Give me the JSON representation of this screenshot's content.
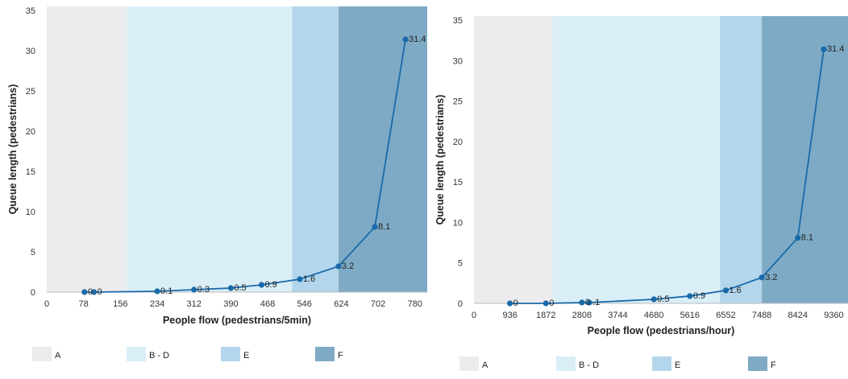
{
  "chart_data": [
    {
      "type": "line",
      "xlabel": "People flow (pedestrians/5min)",
      "ylabel": "Queue length (pedestrians)",
      "xlim": [
        0,
        806
      ],
      "ylim": [
        0,
        35.5
      ],
      "xticks": [
        0,
        78,
        156,
        234,
        312,
        390,
        468,
        546,
        624,
        702,
        780
      ],
      "xtick_labels": [
        "0",
        "78",
        "156",
        "234",
        "312",
        "390",
        "468",
        "546",
        "624",
        "702",
        "780"
      ],
      "yticks": [
        0,
        5,
        10,
        15,
        20,
        25,
        30,
        35
      ],
      "ytick_labels": [
        "0",
        "5",
        "10",
        "15",
        "20",
        "25",
        "30",
        "35"
      ],
      "grid": false,
      "legend_position": "bottom",
      "zones": [
        {
          "name": "A",
          "from": 0,
          "to": 170,
          "color": "#ececee"
        },
        {
          "name": "B - D",
          "from": 170,
          "to": 520,
          "color": "#daeef8"
        },
        {
          "name": "E",
          "from": 520,
          "to": 618,
          "color": "#b3d6ec"
        },
        {
          "name": "F",
          "from": 618,
          "to": 806,
          "color": "#7eaac5"
        }
      ],
      "series": [
        {
          "color": "#1a6aaa",
          "points": [
            {
              "x": 80,
              "y": 0
            },
            {
              "x": 100,
              "y": 0
            },
            {
              "x": 234,
              "y": 0.1
            },
            {
              "x": 312,
              "y": 0.3
            },
            {
              "x": 390,
              "y": 0.5
            },
            {
              "x": 455,
              "y": 0.9
            },
            {
              "x": 536,
              "y": 1.6
            },
            {
              "x": 618,
              "y": 3.2
            },
            {
              "x": 695,
              "y": 8.1
            },
            {
              "x": 760,
              "y": 31.4
            }
          ]
        }
      ],
      "data_labels": [
        {
          "x": 80,
          "y": 0,
          "text": "0",
          "color": "#222"
        },
        {
          "x": 100,
          "y": 0,
          "text": "0",
          "color": "#e0882a"
        },
        {
          "x": 234,
          "y": 0.1,
          "text": "0.1",
          "color": "#222"
        },
        {
          "x": 312,
          "y": 0.3,
          "text": "0.3",
          "color": "#222"
        },
        {
          "x": 390,
          "y": 0.5,
          "text": "0.5",
          "color": "#222"
        },
        {
          "x": 455,
          "y": 0.9,
          "text": "0.9",
          "color": "#222"
        },
        {
          "x": 536,
          "y": 1.6,
          "text": "1.6",
          "color": "#222"
        },
        {
          "x": 618,
          "y": 3.2,
          "text": "3.2",
          "color": "#222"
        },
        {
          "x": 695,
          "y": 8.1,
          "text": "8.1",
          "color": "#222"
        },
        {
          "x": 760,
          "y": 31.4,
          "text": "31.4",
          "color": "#222"
        }
      ],
      "legend": [
        {
          "label": "A",
          "color": "#ececee"
        },
        {
          "label": "B - D",
          "color": "#daeef8"
        },
        {
          "label": "E",
          "color": "#b3d6ec"
        },
        {
          "label": "F",
          "color": "#7eaac5"
        }
      ]
    },
    {
      "type": "line",
      "xlabel": "People flow (pedestrians/hour)",
      "ylabel": "Queue length (pedestrians)",
      "xlim": [
        0,
        9730
      ],
      "ylim": [
        0,
        35.5
      ],
      "xticks": [
        0,
        936,
        1872,
        2808,
        3744,
        4680,
        5616,
        6552,
        7488,
        8424,
        9360
      ],
      "xtick_labels": [
        "0",
        "936",
        "1872",
        "2808",
        "3744",
        "4680",
        "5616",
        "6552",
        "7488",
        "8424",
        "9360"
      ],
      "yticks": [
        0,
        5,
        10,
        15,
        20,
        25,
        30,
        35
      ],
      "ytick_labels": [
        "0",
        "5",
        "10",
        "15",
        "20",
        "25",
        "30",
        "35"
      ],
      "grid": false,
      "legend_position": "bottom",
      "zones": [
        {
          "name": "A",
          "from": 0,
          "to": 2040,
          "color": "#ececee"
        },
        {
          "name": "B - D",
          "from": 2040,
          "to": 6400,
          "color": "#daeef8"
        },
        {
          "name": "E",
          "from": 6400,
          "to": 7488,
          "color": "#b3d6ec"
        },
        {
          "name": "F",
          "from": 7488,
          "to": 9730,
          "color": "#7eaac5"
        }
      ],
      "series": [
        {
          "color": "#1a6aaa",
          "points": [
            {
              "x": 936,
              "y": 0
            },
            {
              "x": 1872,
              "y": 0
            },
            {
              "x": 2808,
              "y": 0.1
            },
            {
              "x": 3000,
              "y": 0.1
            },
            {
              "x": 4680,
              "y": 0.5
            },
            {
              "x": 5616,
              "y": 0.9
            },
            {
              "x": 6552,
              "y": 1.6
            },
            {
              "x": 7488,
              "y": 3.2
            },
            {
              "x": 8424,
              "y": 8.1
            },
            {
              "x": 9100,
              "y": 31.4
            }
          ]
        }
      ],
      "data_labels": [
        {
          "x": 936,
          "y": 0,
          "text": "0",
          "color": "#222"
        },
        {
          "x": 1872,
          "y": 0,
          "text": "0",
          "color": "#222"
        },
        {
          "x": 2808,
          "y": 0.1,
          "text": "0",
          "color": "#222"
        },
        {
          "x": 3000,
          "y": 0.1,
          "text": ".1",
          "color": "#e0882a"
        },
        {
          "x": 4680,
          "y": 0.5,
          "text": "0.5",
          "color": "#222"
        },
        {
          "x": 5616,
          "y": 0.9,
          "text": "0.9",
          "color": "#222"
        },
        {
          "x": 6552,
          "y": 1.6,
          "text": "1.6",
          "color": "#222"
        },
        {
          "x": 7488,
          "y": 3.2,
          "text": "3.2",
          "color": "#222"
        },
        {
          "x": 8424,
          "y": 8.1,
          "text": "8.1",
          "color": "#222"
        },
        {
          "x": 9100,
          "y": 31.4,
          "text": "31.4",
          "color": "#222"
        }
      ],
      "legend": [
        {
          "label": "A",
          "color": "#ececee"
        },
        {
          "label": "B - D",
          "color": "#daeef8"
        },
        {
          "label": "E",
          "color": "#b3d6ec"
        },
        {
          "label": "F",
          "color": "#7eaac5"
        }
      ]
    }
  ]
}
